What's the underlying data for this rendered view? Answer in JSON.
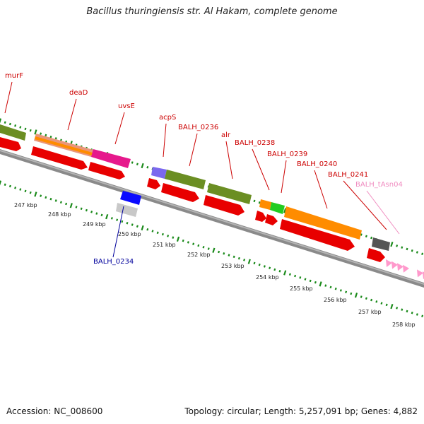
{
  "title": "Bacillus thuringiensis str. Al Hakam, complete genome",
  "accession": "Accession: NC_008600",
  "summary": "Topology: circular; Length: 5,257,091 bp; Genes: 4,882",
  "colors": {
    "backbone": "#8a8a8a",
    "ticks": "#1a8a1a",
    "label_red": "#cc0000",
    "label_blue": "#00009c",
    "label_pink": "#f08cc0",
    "cds": "#e80000",
    "olive": "#6b8e23",
    "orange": "#ff8c00",
    "magenta": "#e6198c",
    "green": "#22cc22",
    "purple": "#7b68ee",
    "blue": "#0a0aff",
    "gray": "#555555",
    "light_gray": "#c8c8c8",
    "pink": "#ff99cc"
  },
  "kbp_ticks": [
    "247 kbp",
    "248 kbp",
    "249 kbp",
    "250 kbp",
    "251 kbp",
    "252 kbp",
    "253 kbp",
    "254 kbp",
    "255 kbp",
    "256 kbp",
    "257 kbp",
    "258 kbp"
  ],
  "gene_labels": [
    {
      "text": "murF",
      "color": "red"
    },
    {
      "text": "deaD",
      "color": "red"
    },
    {
      "text": "uvsE",
      "color": "red"
    },
    {
      "text": "acpS",
      "color": "red"
    },
    {
      "text": "BALH_0236",
      "color": "red"
    },
    {
      "text": "alr",
      "color": "red"
    },
    {
      "text": "BALH_0238",
      "color": "red"
    },
    {
      "text": "BALH_0239",
      "color": "red"
    },
    {
      "text": "BALH_0240",
      "color": "red"
    },
    {
      "text": "BALH_0241",
      "color": "red"
    },
    {
      "text": "BALH_tAsn04",
      "color": "pink"
    },
    {
      "text": "BALH_0234",
      "color": "blue"
    }
  ]
}
